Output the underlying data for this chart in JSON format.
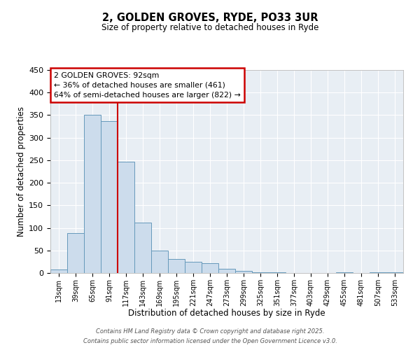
{
  "title": "2, GOLDEN GROVES, RYDE, PO33 3UR",
  "subtitle": "Size of property relative to detached houses in Ryde",
  "xlabel": "Distribution of detached houses by size in Ryde",
  "ylabel": "Number of detached properties",
  "bar_color": "#ccdcec",
  "bar_edge_color": "#6699bb",
  "background_color": "#e8eef4",
  "grid_color": "#ffffff",
  "bin_labels": [
    "13sqm",
    "39sqm",
    "65sqm",
    "91sqm",
    "117sqm",
    "143sqm",
    "169sqm",
    "195sqm",
    "221sqm",
    "247sqm",
    "273sqm",
    "299sqm",
    "325sqm",
    "351sqm",
    "377sqm",
    "403sqm",
    "429sqm",
    "455sqm",
    "481sqm",
    "507sqm",
    "533sqm"
  ],
  "bin_values": [
    7,
    89,
    350,
    336,
    246,
    112,
    49,
    31,
    25,
    21,
    10,
    5,
    1,
    1,
    0,
    0,
    0,
    1,
    0,
    1,
    1
  ],
  "property_bin_index": 3,
  "vline_color": "#cc0000",
  "annotation_text": "2 GOLDEN GROVES: 92sqm\n← 36% of detached houses are smaller (461)\n64% of semi-detached houses are larger (822) →",
  "annotation_box_color": "#ffffff",
  "annotation_box_edge_color": "#cc0000",
  "ylim": [
    0,
    450
  ],
  "yticks": [
    0,
    50,
    100,
    150,
    200,
    250,
    300,
    350,
    400,
    450
  ],
  "footer_line1": "Contains HM Land Registry data © Crown copyright and database right 2025.",
  "footer_line2": "Contains public sector information licensed under the Open Government Licence v3.0."
}
